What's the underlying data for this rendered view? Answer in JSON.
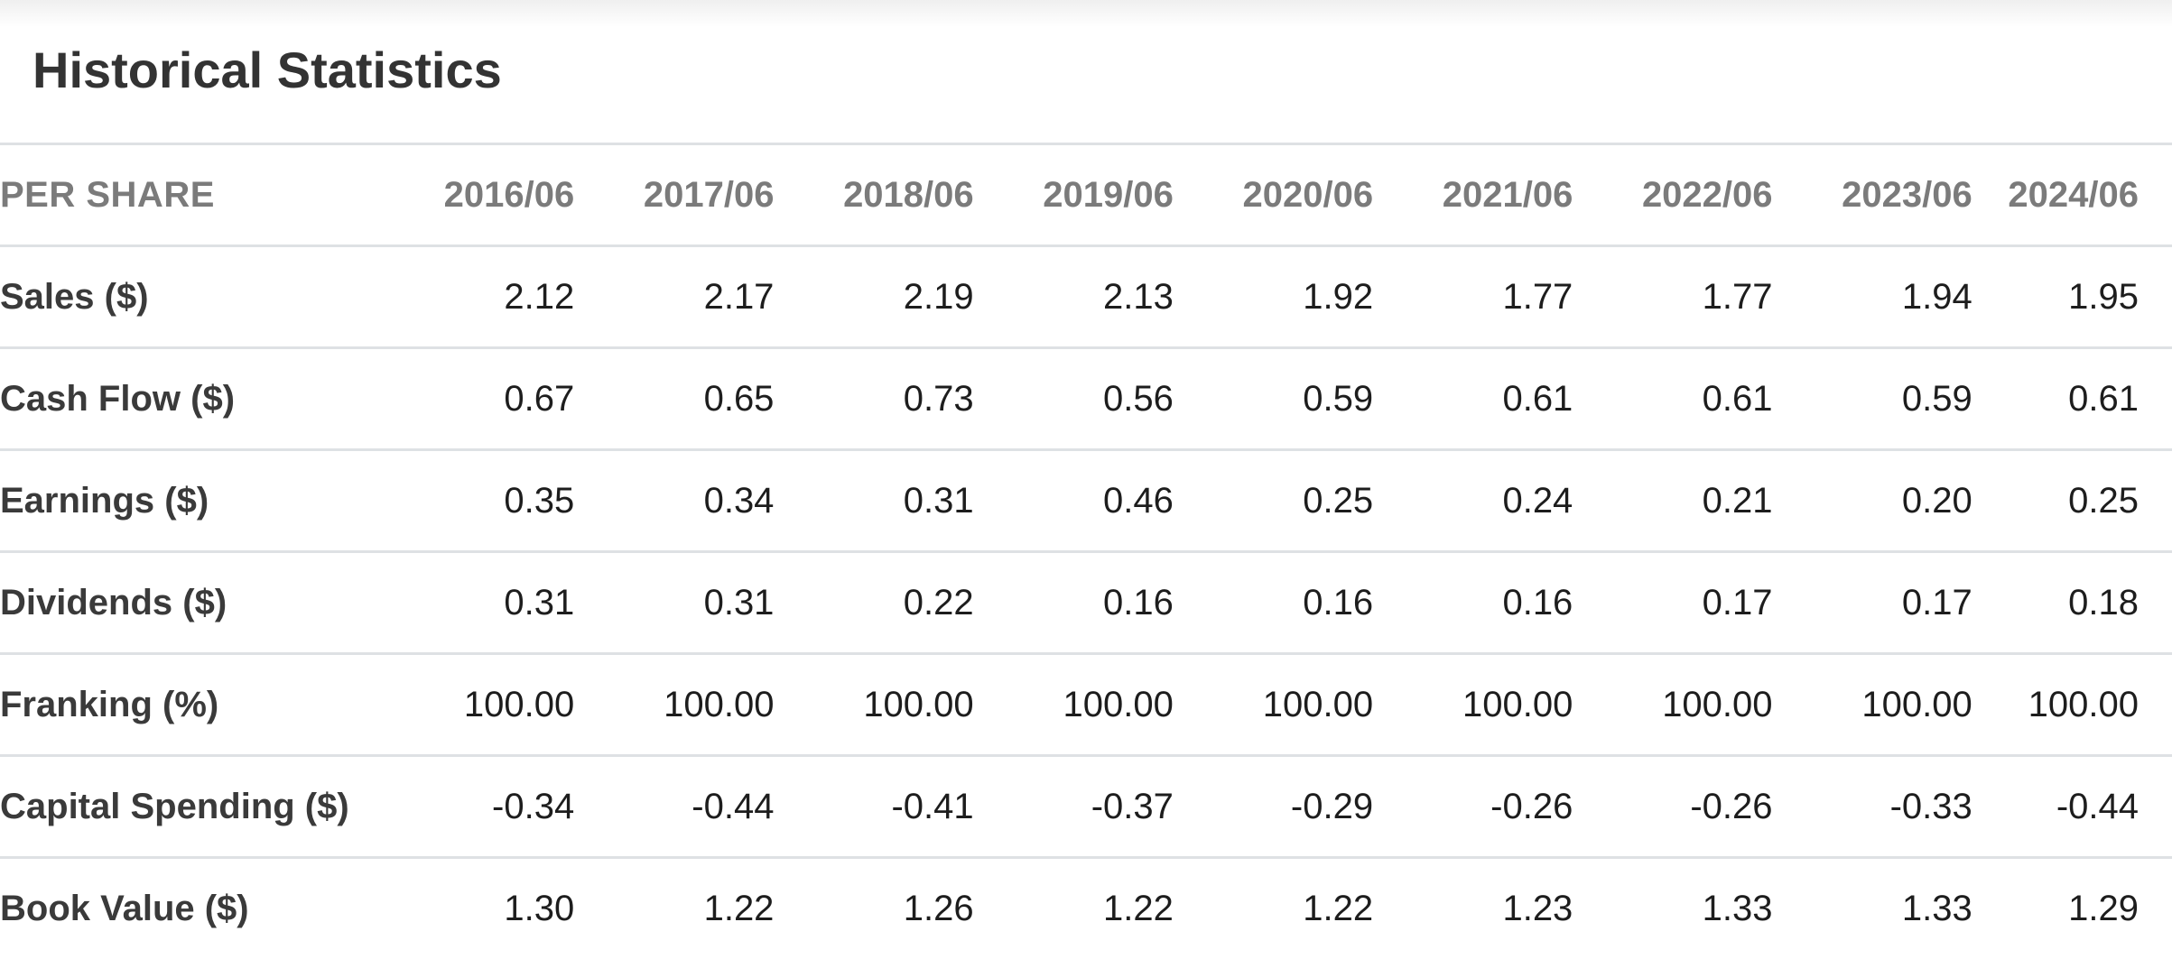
{
  "section": {
    "title": "Historical Statistics"
  },
  "table": {
    "header": {
      "label": "PER SHARE",
      "columns": [
        "2016/06",
        "2017/06",
        "2018/06",
        "2019/06",
        "2020/06",
        "2021/06",
        "2022/06",
        "2023/06",
        "2024/06"
      ]
    },
    "rows": [
      {
        "label": "Sales ($)",
        "values": [
          "2.12",
          "2.17",
          "2.19",
          "2.13",
          "1.92",
          "1.77",
          "1.77",
          "1.94",
          "1.95"
        ]
      },
      {
        "label": "Cash Flow ($)",
        "values": [
          "0.67",
          "0.65",
          "0.73",
          "0.56",
          "0.59",
          "0.61",
          "0.61",
          "0.59",
          "0.61"
        ]
      },
      {
        "label": "Earnings ($)",
        "values": [
          "0.35",
          "0.34",
          "0.31",
          "0.46",
          "0.25",
          "0.24",
          "0.21",
          "0.20",
          "0.25"
        ]
      },
      {
        "label": "Dividends ($)",
        "values": [
          "0.31",
          "0.31",
          "0.22",
          "0.16",
          "0.16",
          "0.16",
          "0.17",
          "0.17",
          "0.18"
        ]
      },
      {
        "label": "Franking (%)",
        "values": [
          "100.00",
          "100.00",
          "100.00",
          "100.00",
          "100.00",
          "100.00",
          "100.00",
          "100.00",
          "100.00"
        ]
      },
      {
        "label": "Capital Spending ($)",
        "values": [
          "-0.34",
          "-0.44",
          "-0.41",
          "-0.37",
          "-0.29",
          "-0.26",
          "-0.26",
          "-0.33",
          "-0.44"
        ]
      },
      {
        "label": "Book Value ($)",
        "values": [
          "1.30",
          "1.22",
          "1.26",
          "1.22",
          "1.22",
          "1.23",
          "1.33",
          "1.33",
          "1.29"
        ]
      }
    ]
  },
  "colors": {
    "divider": "#dee1e4",
    "title_text": "#333333",
    "header_text": "#7b7b7b",
    "row_label_text": "#3a3a3a",
    "value_text": "#1d1d1d",
    "top_fade": "#efefef",
    "background": "#ffffff"
  }
}
